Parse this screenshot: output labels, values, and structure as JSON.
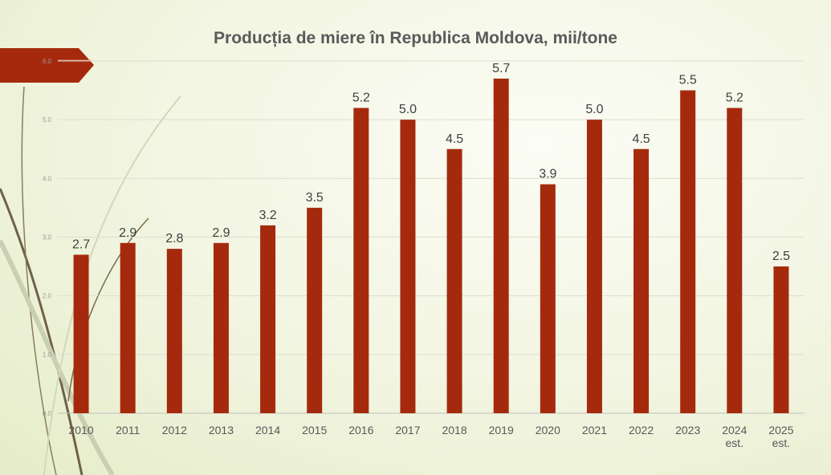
{
  "chart_data": {
    "type": "bar",
    "title": "Producția de miere în Republica Moldova, mii/tone",
    "categories": [
      "2010",
      "2011",
      "2012",
      "2013",
      "2014",
      "2015",
      "2016",
      "2017",
      "2018",
      "2019",
      "2020",
      "2021",
      "2022",
      "2023",
      "2024\nest.",
      "2025\nest."
    ],
    "values": [
      2.7,
      2.9,
      2.8,
      2.9,
      3.2,
      3.5,
      5.2,
      5.0,
      4.5,
      5.7,
      3.9,
      5.0,
      4.5,
      5.5,
      5.2,
      2.5
    ],
    "data_labels": [
      "2.7",
      "2.9",
      "2.8",
      "2.9",
      "3.2",
      "3.5",
      "5.2",
      "5.0",
      "4.5",
      "5.7",
      "3.9",
      "5.0",
      "4.5",
      "5.5",
      "5.2",
      "2.5"
    ],
    "y_ticks": [
      "0.0",
      "1.0",
      "2.0",
      "3.0",
      "4.0",
      "5.0",
      "6.0"
    ],
    "ylim": [
      0,
      6
    ],
    "grid": true,
    "bar_color": "#a52a0d"
  },
  "colors": {
    "accent_arrow": "#a52a0d",
    "curve_dark": "#6e6147",
    "curve_light": "#c9cfb0"
  }
}
